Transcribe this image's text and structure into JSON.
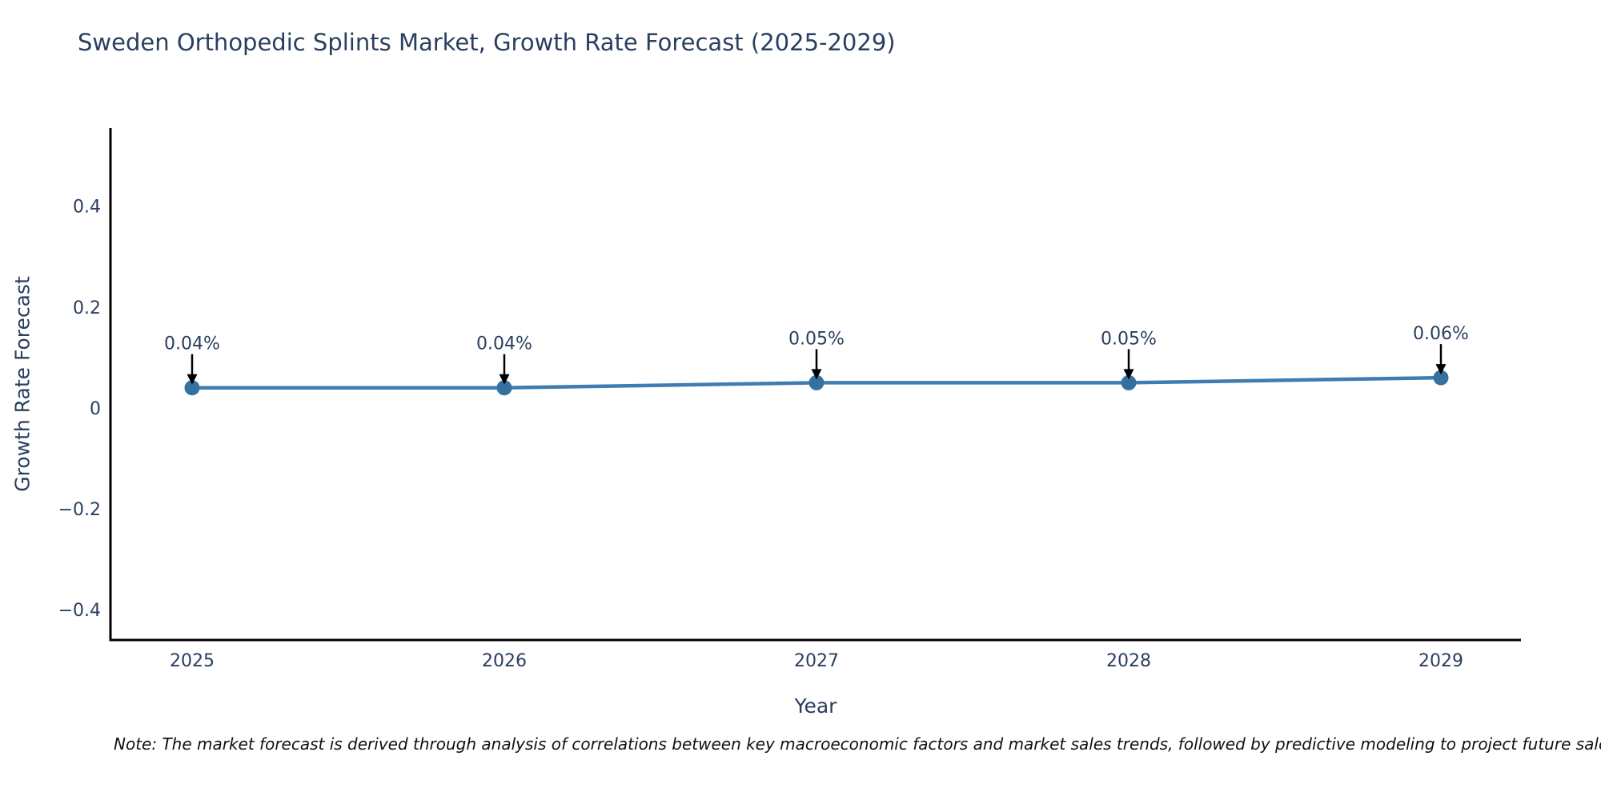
{
  "chart_data": {
    "type": "line",
    "title": "Sweden Orthopedic Splints Market, Growth Rate Forecast (2025-2029)",
    "xlabel": "Year",
    "ylabel": "Growth Rate Forecast",
    "x": [
      2025,
      2026,
      2027,
      2028,
      2029
    ],
    "series": [
      {
        "name": "Growth Rate Forecast",
        "values": [
          0.04,
          0.04,
          0.05,
          0.05,
          0.06
        ],
        "point_labels": [
          "0.04%",
          "0.04%",
          "0.05%",
          "0.05%",
          "0.06%"
        ]
      }
    ],
    "xtick_labels": [
      "2025",
      "2026",
      "2027",
      "2028",
      "2029"
    ],
    "yticks": [
      0.4,
      0.2,
      0,
      -0.2,
      -0.4
    ],
    "ytick_labels": [
      "0.4",
      "0.2",
      "0",
      "−0.2",
      "−0.4"
    ],
    "ylim": [
      -0.46,
      0.555
    ],
    "grid": false,
    "legend_position": "none",
    "colors": {
      "line": "#3f7cb1",
      "marker": "#35719f",
      "axis": "#000000",
      "tick_text": "#2a3f5f",
      "annotation_text": "#2a3f5f",
      "annotation_arrow": "#000000"
    }
  },
  "footnote": "Note: The market forecast is derived through analysis of correlations between key macroeconomic factors and market sales trends, followed by predictive modeling to project future sales."
}
